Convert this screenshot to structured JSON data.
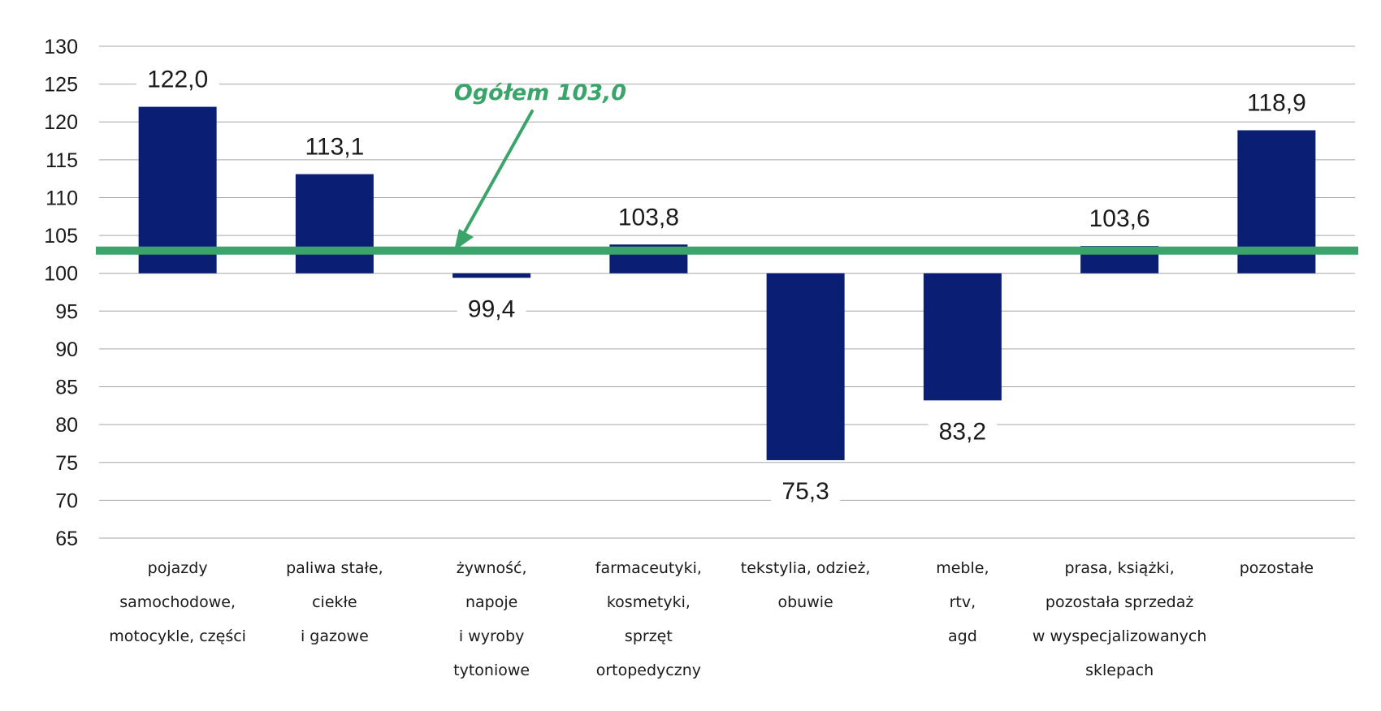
{
  "chart_data": {
    "type": "bar",
    "baseline": 100,
    "ylim": [
      65,
      130
    ],
    "yticks": [
      65,
      70,
      75,
      80,
      85,
      90,
      95,
      100,
      105,
      110,
      115,
      120,
      125,
      130
    ],
    "grid": true,
    "categories": [
      [
        "pojazdy",
        "samochodowe,",
        "motocykle,  części"
      ],
      [
        "paliwa stałe,",
        "ciekłe",
        "i gazowe"
      ],
      [
        "żywność,",
        "napoje",
        "i wyroby",
        "tytoniowe"
      ],
      [
        "farmaceutyki,",
        "kosmetyki,",
        "sprzęt",
        "ortopedyczny"
      ],
      [
        "tekstylia, odzież,",
        "obuwie"
      ],
      [
        "meble,",
        "rtv,",
        "agd"
      ],
      [
        "prasa, książki,",
        "pozostała sprzedaż",
        "w wyspecjalizowanych",
        "sklepach"
      ],
      [
        "pozostałe"
      ]
    ],
    "values": [
      122.0,
      113.1,
      99.4,
      103.8,
      75.3,
      83.2,
      103.6,
      118.9
    ],
    "value_labels": [
      "122,0",
      "113,1",
      "99,4",
      "103,8",
      "75,3",
      "83,2",
      "103,6",
      "118,9"
    ],
    "reference_line": {
      "value": 103.0,
      "label": "Ogółem 103,0"
    },
    "colors": {
      "bar": "#0a1f73",
      "reference": "#3ba46b",
      "grid": "#a6a6a6"
    }
  }
}
